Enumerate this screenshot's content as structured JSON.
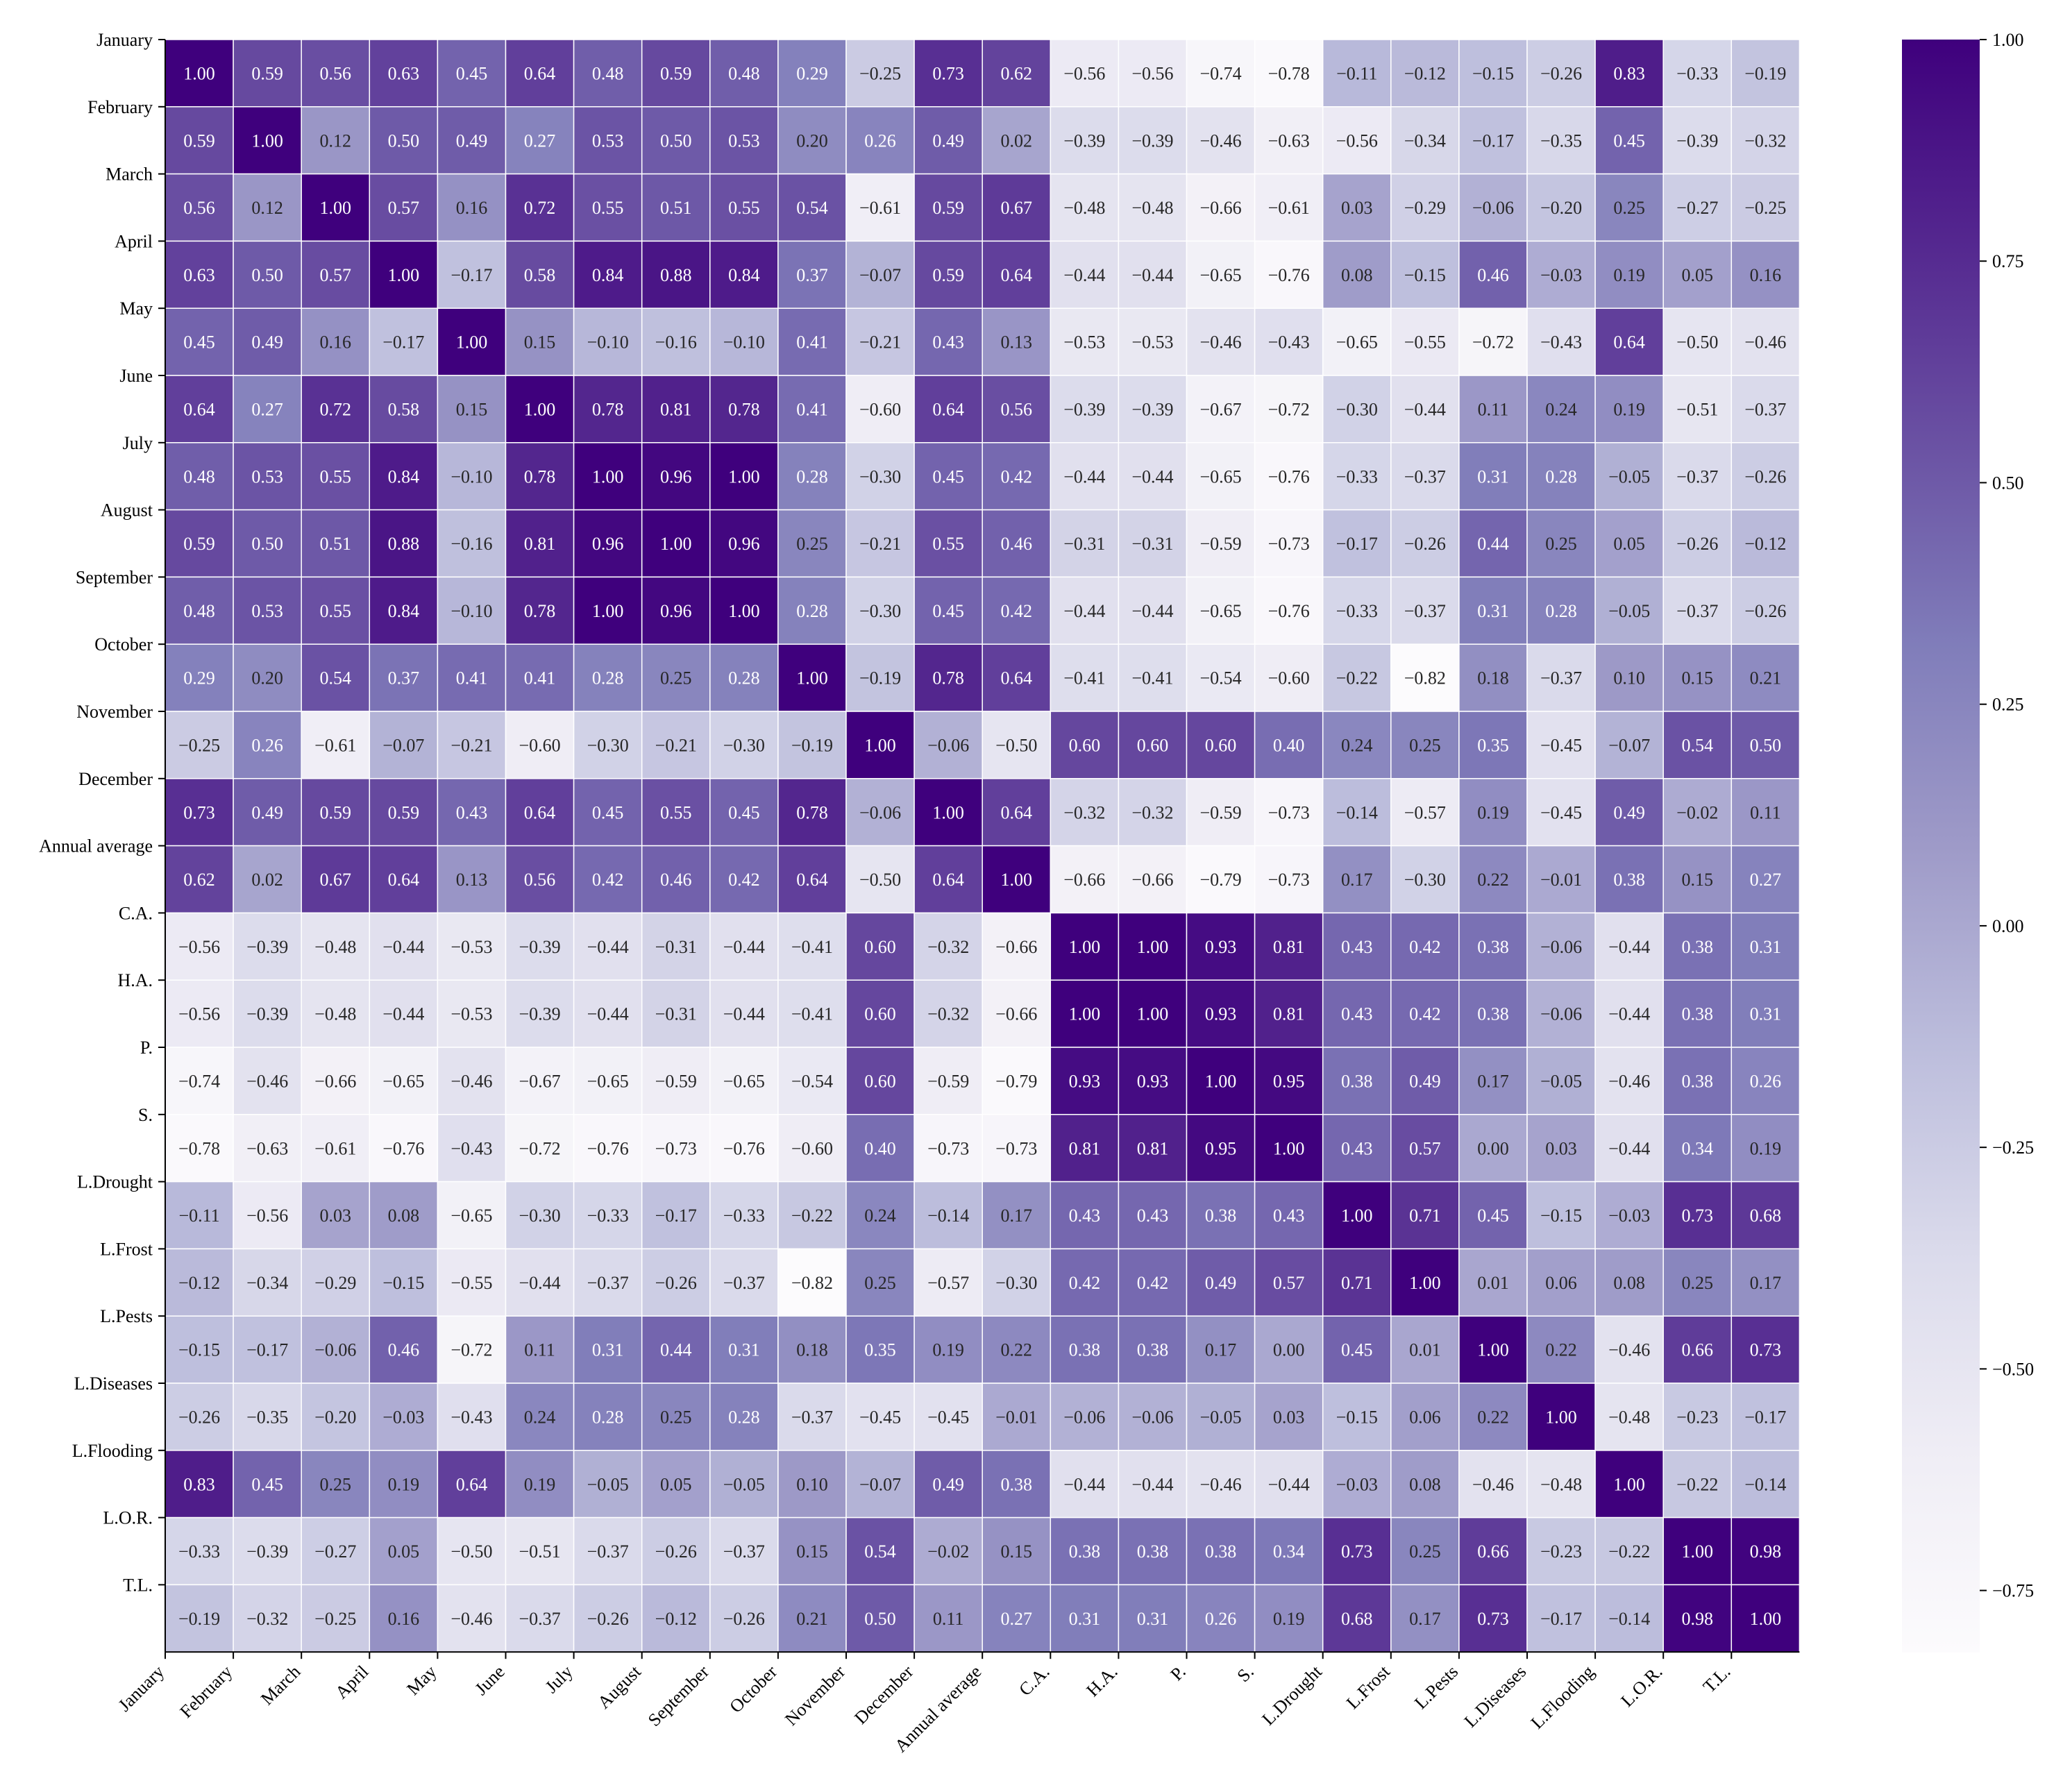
{
  "chart_data": {
    "type": "heatmap",
    "title": "",
    "xlabel": "",
    "ylabel": "",
    "labels": [
      "January",
      "February",
      "March",
      "April",
      "May",
      "June",
      "July",
      "August",
      "September",
      "October",
      "November",
      "December",
      "Annual average",
      "C.A.",
      "H.A.",
      "P.",
      "S.",
      "L.Drought",
      "L.Frost",
      "L.Pests",
      "L.Diseases",
      "L.Flooding",
      "L.O.R.",
      "T.L."
    ],
    "matrix": [
      [
        1.0,
        0.59,
        0.56,
        0.63,
        0.45,
        0.64,
        0.48,
        0.59,
        0.48,
        0.29,
        -0.25,
        0.73,
        0.62,
        -0.56,
        -0.56,
        -0.74,
        -0.78,
        -0.11,
        -0.12,
        -0.15,
        -0.26,
        0.83,
        -0.33,
        -0.19
      ],
      [
        0.59,
        1.0,
        0.12,
        0.5,
        0.49,
        0.27,
        0.53,
        0.5,
        0.53,
        0.2,
        0.26,
        0.49,
        0.02,
        -0.39,
        -0.39,
        -0.46,
        -0.63,
        -0.56,
        -0.34,
        -0.17,
        -0.35,
        0.45,
        -0.39,
        -0.32
      ],
      [
        0.56,
        0.12,
        1.0,
        0.57,
        0.16,
        0.72,
        0.55,
        0.51,
        0.55,
        0.54,
        -0.61,
        0.59,
        0.67,
        -0.48,
        -0.48,
        -0.66,
        -0.61,
        0.03,
        -0.29,
        -0.06,
        -0.2,
        0.25,
        -0.27,
        -0.25
      ],
      [
        0.63,
        0.5,
        0.57,
        1.0,
        -0.17,
        0.58,
        0.84,
        0.88,
        0.84,
        0.37,
        -0.07,
        0.59,
        0.64,
        -0.44,
        -0.44,
        -0.65,
        -0.76,
        0.08,
        -0.15,
        0.46,
        -0.03,
        0.19,
        0.05,
        0.16
      ],
      [
        0.45,
        0.49,
        0.16,
        -0.17,
        1.0,
        0.15,
        -0.1,
        -0.16,
        -0.1,
        0.41,
        -0.21,
        0.43,
        0.13,
        -0.53,
        -0.53,
        -0.46,
        -0.43,
        -0.65,
        -0.55,
        -0.72,
        -0.43,
        0.64,
        -0.5,
        -0.46
      ],
      [
        0.64,
        0.27,
        0.72,
        0.58,
        0.15,
        1.0,
        0.78,
        0.81,
        0.78,
        0.41,
        -0.6,
        0.64,
        0.56,
        -0.39,
        -0.39,
        -0.67,
        -0.72,
        -0.3,
        -0.44,
        0.11,
        0.24,
        0.19,
        -0.51,
        -0.37
      ],
      [
        0.48,
        0.53,
        0.55,
        0.84,
        -0.1,
        0.78,
        1.0,
        0.96,
        1.0,
        0.28,
        -0.3,
        0.45,
        0.42,
        -0.44,
        -0.44,
        -0.65,
        -0.76,
        -0.33,
        -0.37,
        0.31,
        0.28,
        -0.05,
        -0.37,
        -0.26
      ],
      [
        0.59,
        0.5,
        0.51,
        0.88,
        -0.16,
        0.81,
        0.96,
        1.0,
        0.96,
        0.25,
        -0.21,
        0.55,
        0.46,
        -0.31,
        -0.31,
        -0.59,
        -0.73,
        -0.17,
        -0.26,
        0.44,
        0.25,
        0.05,
        -0.26,
        -0.12
      ],
      [
        0.48,
        0.53,
        0.55,
        0.84,
        -0.1,
        0.78,
        1.0,
        0.96,
        1.0,
        0.28,
        -0.3,
        0.45,
        0.42,
        -0.44,
        -0.44,
        -0.65,
        -0.76,
        -0.33,
        -0.37,
        0.31,
        0.28,
        -0.05,
        -0.37,
        -0.26
      ],
      [
        0.29,
        0.2,
        0.54,
        0.37,
        0.41,
        0.41,
        0.28,
        0.25,
        0.28,
        1.0,
        -0.19,
        0.78,
        0.64,
        -0.41,
        -0.41,
        -0.54,
        -0.6,
        -0.22,
        -0.82,
        0.18,
        -0.37,
        0.1,
        0.15,
        0.21
      ],
      [
        -0.25,
        0.26,
        -0.61,
        -0.07,
        -0.21,
        -0.6,
        -0.3,
        -0.21,
        -0.3,
        -0.19,
        1.0,
        -0.06,
        -0.5,
        0.6,
        0.6,
        0.6,
        0.4,
        0.24,
        0.25,
        0.35,
        -0.45,
        -0.07,
        0.54,
        0.5
      ],
      [
        0.73,
        0.49,
        0.59,
        0.59,
        0.43,
        0.64,
        0.45,
        0.55,
        0.45,
        0.78,
        -0.06,
        1.0,
        0.64,
        -0.32,
        -0.32,
        -0.59,
        -0.73,
        -0.14,
        -0.57,
        0.19,
        -0.45,
        0.49,
        -0.02,
        0.11
      ],
      [
        0.62,
        0.02,
        0.67,
        0.64,
        0.13,
        0.56,
        0.42,
        0.46,
        0.42,
        0.64,
        -0.5,
        0.64,
        1.0,
        -0.66,
        -0.66,
        -0.79,
        -0.73,
        0.17,
        -0.3,
        0.22,
        -0.01,
        0.38,
        0.15,
        0.27
      ],
      [
        -0.56,
        -0.39,
        -0.48,
        -0.44,
        -0.53,
        -0.39,
        -0.44,
        -0.31,
        -0.44,
        -0.41,
        0.6,
        -0.32,
        -0.66,
        1.0,
        1.0,
        0.93,
        0.81,
        0.43,
        0.42,
        0.38,
        -0.06,
        -0.44,
        0.38,
        0.31
      ],
      [
        -0.56,
        -0.39,
        -0.48,
        -0.44,
        -0.53,
        -0.39,
        -0.44,
        -0.31,
        -0.44,
        -0.41,
        0.6,
        -0.32,
        -0.66,
        1.0,
        1.0,
        0.93,
        0.81,
        0.43,
        0.42,
        0.38,
        -0.06,
        -0.44,
        0.38,
        0.31
      ],
      [
        -0.74,
        -0.46,
        -0.66,
        -0.65,
        -0.46,
        -0.67,
        -0.65,
        -0.59,
        -0.65,
        -0.54,
        0.6,
        -0.59,
        -0.79,
        0.93,
        0.93,
        1.0,
        0.95,
        0.38,
        0.49,
        0.17,
        -0.05,
        -0.46,
        0.38,
        0.26
      ],
      [
        -0.78,
        -0.63,
        -0.61,
        -0.76,
        -0.43,
        -0.72,
        -0.76,
        -0.73,
        -0.76,
        -0.6,
        0.4,
        -0.73,
        -0.73,
        0.81,
        0.81,
        0.95,
        1.0,
        0.43,
        0.57,
        0.0,
        0.03,
        -0.44,
        0.34,
        0.19
      ],
      [
        -0.11,
        -0.56,
        0.03,
        0.08,
        -0.65,
        -0.3,
        -0.33,
        -0.17,
        -0.33,
        -0.22,
        0.24,
        -0.14,
        0.17,
        0.43,
        0.43,
        0.38,
        0.43,
        1.0,
        0.71,
        0.45,
        -0.15,
        -0.03,
        0.73,
        0.68
      ],
      [
        -0.12,
        -0.34,
        -0.29,
        -0.15,
        -0.55,
        -0.44,
        -0.37,
        -0.26,
        -0.37,
        -0.82,
        0.25,
        -0.57,
        -0.3,
        0.42,
        0.42,
        0.49,
        0.57,
        0.71,
        1.0,
        0.01,
        0.06,
        0.08,
        0.25,
        0.17
      ],
      [
        -0.15,
        -0.17,
        -0.06,
        0.46,
        -0.72,
        0.11,
        0.31,
        0.44,
        0.31,
        0.18,
        0.35,
        0.19,
        0.22,
        0.38,
        0.38,
        0.17,
        0.0,
        0.45,
        0.01,
        1.0,
        0.22,
        -0.46,
        0.66,
        0.73
      ],
      [
        -0.26,
        -0.35,
        -0.2,
        -0.03,
        -0.43,
        0.24,
        0.28,
        0.25,
        0.28,
        -0.37,
        -0.45,
        -0.45,
        -0.01,
        -0.06,
        -0.06,
        -0.05,
        0.03,
        -0.15,
        0.06,
        0.22,
        1.0,
        -0.48,
        -0.23,
        -0.17
      ],
      [
        0.83,
        0.45,
        0.25,
        0.19,
        0.64,
        0.19,
        -0.05,
        0.05,
        -0.05,
        0.1,
        -0.07,
        0.49,
        0.38,
        -0.44,
        -0.44,
        -0.46,
        -0.44,
        -0.03,
        0.08,
        -0.46,
        -0.48,
        1.0,
        -0.22,
        -0.14
      ],
      [
        -0.33,
        -0.39,
        -0.27,
        0.05,
        -0.5,
        -0.51,
        -0.37,
        -0.26,
        -0.37,
        0.15,
        0.54,
        -0.02,
        0.15,
        0.38,
        0.38,
        0.38,
        0.34,
        0.73,
        0.25,
        0.66,
        -0.23,
        -0.22,
        1.0,
        0.98
      ],
      [
        -0.19,
        -0.32,
        -0.25,
        0.16,
        -0.46,
        -0.37,
        -0.26,
        -0.12,
        -0.26,
        0.21,
        0.5,
        0.11,
        0.27,
        0.31,
        0.31,
        0.26,
        0.19,
        0.68,
        0.17,
        0.73,
        -0.17,
        -0.14,
        0.98,
        1.0
      ]
    ],
    "vmin": -0.82,
    "vmax": 1.0,
    "colormap": "Purples",
    "colors": [
      "#fcfbfd",
      "#efedf5",
      "#dadaeb",
      "#bcbddc",
      "#9e9ac8",
      "#807dba",
      "#6a51a3",
      "#54278f",
      "#3f007d"
    ],
    "colorbar": {
      "ticks": [
        1.0,
        0.75,
        0.5,
        0.25,
        0.0,
        -0.25,
        -0.5,
        -0.75
      ],
      "tick_labels": [
        "1.00",
        "0.75",
        "0.50",
        "0.25",
        "0.00",
        "−0.25",
        "−0.50",
        "−0.75"
      ]
    },
    "legend_position": "right",
    "grid": false
  }
}
